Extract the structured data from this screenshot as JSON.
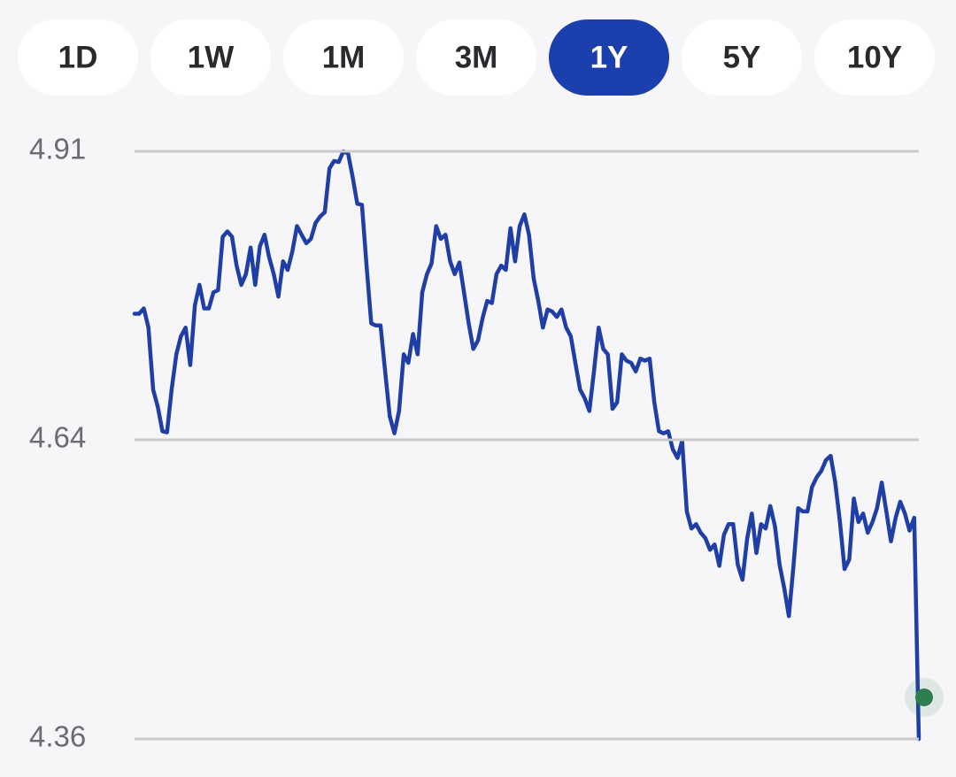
{
  "ranges": [
    "1D",
    "1W",
    "1M",
    "3M",
    "1Y",
    "5Y",
    "10Y"
  ],
  "selected_range": 4,
  "chart_data": {
    "type": "line",
    "color": "#1f3ea6",
    "grid": true,
    "ylim": [
      4.36,
      4.91
    ],
    "yticks": [
      4.36,
      4.64,
      4.91
    ],
    "categories": [
      null,
      null,
      null,
      null,
      null,
      null,
      null,
      null,
      null,
      null,
      null,
      null,
      null,
      null,
      null,
      null,
      null,
      null,
      null,
      null,
      null,
      null,
      null,
      null,
      null,
      null,
      null,
      null,
      null,
      null,
      null,
      null,
      null,
      null,
      null,
      null,
      null,
      null,
      null,
      null,
      null,
      null,
      null,
      null,
      null,
      null,
      null,
      null,
      null,
      null,
      null,
      null,
      null,
      null,
      null,
      null,
      null,
      null,
      null,
      null,
      null,
      null,
      null,
      null,
      null,
      null,
      null,
      null,
      null,
      null,
      null,
      null,
      null,
      null,
      null,
      null,
      null,
      null,
      null,
      null,
      null,
      null,
      null,
      null,
      null,
      null,
      null,
      null,
      null,
      null,
      null,
      null,
      null,
      null,
      null,
      null,
      null,
      null,
      null,
      null,
      null,
      null,
      null,
      null,
      null,
      null,
      null,
      null,
      null,
      null,
      null,
      null,
      null,
      null,
      null,
      null,
      null,
      null,
      null,
      null,
      null,
      null,
      null,
      null,
      null,
      null,
      null,
      null,
      null,
      null,
      null,
      null,
      null,
      null,
      null,
      null,
      null,
      null,
      null,
      null,
      null,
      null,
      null,
      null,
      null,
      null,
      null,
      null,
      null,
      null,
      null,
      null,
      null,
      null,
      null,
      null,
      null,
      null,
      null,
      null,
      null,
      null,
      null,
      null,
      null,
      null,
      null,
      null,
      null,
      null
    ],
    "values": [
      4.758,
      4.758,
      4.763,
      4.745,
      4.687,
      4.671,
      4.648,
      4.647,
      4.687,
      4.72,
      4.737,
      4.745,
      4.71,
      4.766,
      4.785,
      4.763,
      4.763,
      4.778,
      4.78,
      4.83,
      4.835,
      4.83,
      4.803,
      4.785,
      4.795,
      4.82,
      4.785,
      4.821,
      4.832,
      4.811,
      4.795,
      4.774,
      4.807,
      4.799,
      4.816,
      4.84,
      4.832,
      4.824,
      4.828,
      4.843,
      4.849,
      4.853,
      4.894,
      4.901,
      4.9,
      4.91,
      4.908,
      4.886,
      4.861,
      4.86,
      4.803,
      4.749,
      4.747,
      4.747,
      4.704,
      4.662,
      4.646,
      4.667,
      4.72,
      4.712,
      4.739,
      4.72,
      4.778,
      4.795,
      4.805,
      4.84,
      4.828,
      4.832,
      4.807,
      4.795,
      4.806,
      4.778,
      4.749,
      4.725,
      4.733,
      4.754,
      4.77,
      4.768,
      4.795,
      4.803,
      4.799,
      4.838,
      4.807,
      4.84,
      4.851,
      4.832,
      4.791,
      4.77,
      4.745,
      4.762,
      4.76,
      4.755,
      4.762,
      4.745,
      4.737,
      4.712,
      4.687,
      4.679,
      4.667,
      4.704,
      4.745,
      4.725,
      4.72,
      4.669,
      4.675,
      4.72,
      4.714,
      4.712,
      4.704,
      4.716,
      4.714,
      4.716,
      4.675,
      4.648,
      4.646,
      4.648,
      4.631,
      4.623,
      4.639,
      4.573,
      4.557,
      4.561,
      4.553,
      4.548,
      4.537,
      4.542,
      4.522,
      4.551,
      4.561,
      4.561,
      4.523,
      4.509,
      4.547,
      4.571,
      4.534,
      4.561,
      4.557,
      4.578,
      4.559,
      4.523,
      4.501,
      4.475,
      4.522,
      4.576,
      4.573,
      4.573,
      4.596,
      4.605,
      4.611,
      4.621,
      4.625,
      4.6,
      4.563,
      4.519,
      4.528,
      4.585,
      4.563,
      4.571,
      4.553,
      4.563,
      4.576,
      4.6,
      4.573,
      4.545,
      4.567,
      4.582,
      4.571,
      4.555,
      4.567,
      4.36
    ]
  }
}
